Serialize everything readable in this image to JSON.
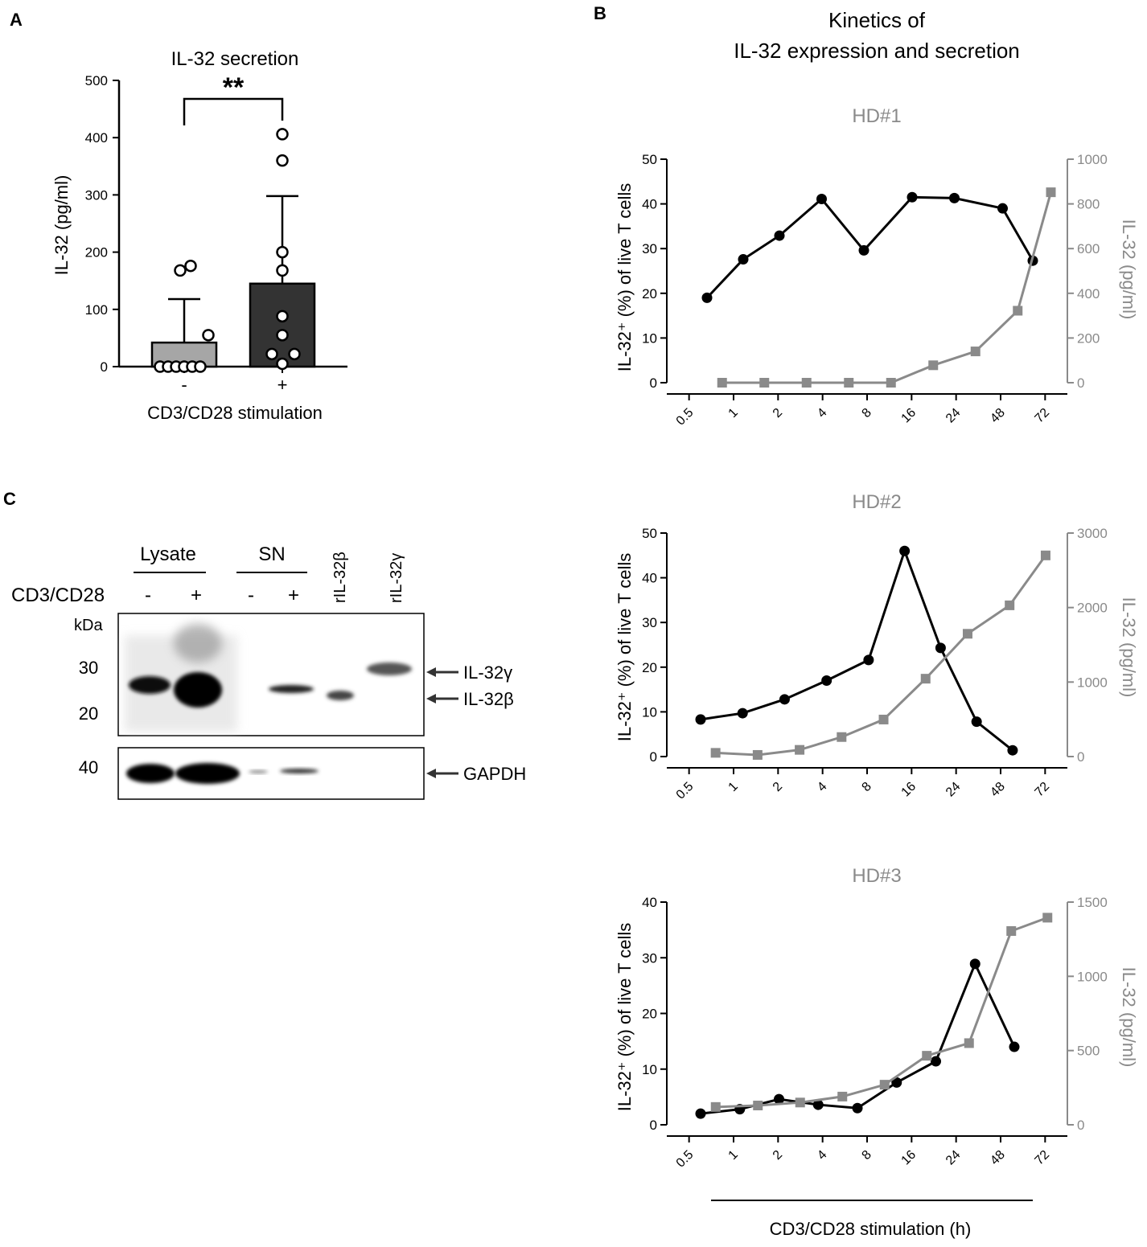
{
  "panels": {
    "a": "A",
    "b": "B",
    "c": "C"
  },
  "colors": {
    "black": "#000000",
    "gray": "#8a8a8a",
    "bar_unstim": "#a6a6a6",
    "bar_stim": "#333333"
  },
  "chart_data": [
    {
      "id": "panel-a",
      "type": "bar",
      "title": "IL-32 secretion",
      "ylabel": "IL-32 (pg/ml)",
      "xlabel": "CD3/CD28 stimulation",
      "categories": [
        "-",
        "+"
      ],
      "values": [
        42,
        145
      ],
      "sd": [
        76,
        153
      ],
      "ylim": [
        0,
        500
      ],
      "yticks": [
        0,
        100,
        200,
        300,
        400,
        500
      ],
      "points": [
        [
          0,
          0,
          0,
          0,
          0,
          0,
          55,
          168,
          176
        ],
        [
          5,
          22,
          22,
          55,
          88,
          168,
          200,
          360,
          406
        ]
      ],
      "significance": "**"
    },
    {
      "id": "hd1",
      "type": "line",
      "title": "HD#1",
      "x": [
        "0.5",
        "1",
        "2",
        "4",
        "8",
        "16",
        "24",
        "48",
        "72"
      ],
      "ylabel_left": "IL-32⁺ (%) of live T cells",
      "ylabel_right": "IL-32 (pg/ml)",
      "ylim_left": [
        0,
        50
      ],
      "ylim_right": [
        0,
        1000
      ],
      "yticks_left": [
        0,
        10,
        20,
        30,
        40,
        50
      ],
      "yticks_right": [
        0,
        200,
        400,
        600,
        800,
        1000
      ],
      "series": [
        {
          "name": "IL-32⁺ (%) of live T cells",
          "axis": "left",
          "marker": "circle",
          "x_pos": [
            0.0,
            0.6,
            1.2,
            1.9,
            2.6,
            3.4,
            4.1,
            4.9,
            5.4
          ],
          "values": [
            19,
            27.6,
            32.9,
            41.1,
            29.6,
            41.5,
            41.3,
            39,
            27.3
          ]
        },
        {
          "name": "IL-32 (pg/ml)",
          "axis": "right",
          "marker": "square",
          "x_pos": [
            0.25,
            0.95,
            1.65,
            2.35,
            3.05,
            3.75,
            4.45,
            5.15,
            5.7
          ],
          "values": [
            0,
            0,
            0,
            0,
            0,
            78,
            140,
            322,
            852
          ]
        }
      ]
    },
    {
      "id": "hd2",
      "type": "line",
      "title": "HD#2",
      "x": [
        "0.5",
        "1",
        "2",
        "4",
        "8",
        "16",
        "24",
        "48",
        "72"
      ],
      "ylabel_left": "IL-32⁺ (%) of live T cells",
      "ylabel_right": "IL-32 (pg/ml)",
      "ylim_left": [
        0,
        50
      ],
      "ylim_right": [
        0,
        3000
      ],
      "yticks_left": [
        0,
        10,
        20,
        30,
        40,
        50
      ],
      "yticks_right": [
        0,
        1000,
        2000,
        3000
      ],
      "series": [
        {
          "name": "IL-32⁺ (%) of live T cells",
          "axis": "left",
          "marker": "circle",
          "x_pos": [
            0.0,
            0.7,
            1.4,
            2.1,
            2.8,
            3.4,
            4.0,
            4.6,
            5.2
          ],
          "values": [
            8.3,
            9.7,
            12.8,
            17,
            21.6,
            46,
            24.3,
            7.8,
            1.4
          ]
        },
        {
          "name": "IL-32 (pg/ml)",
          "axis": "right",
          "marker": "square",
          "x_pos": [
            0.25,
            0.95,
            1.65,
            2.35,
            3.05,
            3.75,
            4.45,
            5.15,
            5.75
          ],
          "values": [
            50,
            22,
            90,
            262,
            497,
            1045,
            1648,
            2030,
            2700
          ]
        }
      ]
    },
    {
      "id": "hd3",
      "type": "line",
      "title": "HD#3",
      "x": [
        "0.5",
        "1",
        "2",
        "4",
        "8",
        "16",
        "24",
        "48",
        "72"
      ],
      "ylabel_left": "IL-32⁺ (%) of live T cells",
      "ylabel_right": "IL-32 (pg/ml)",
      "xlabel": "CD3/CD28 stimulation (h)",
      "ylim_left": [
        0,
        40
      ],
      "ylim_right": [
        0,
        1500
      ],
      "yticks_left": [
        0,
        10,
        20,
        30,
        40
      ],
      "yticks_right": [
        0,
        500,
        1000,
        1500
      ],
      "series": [
        {
          "name": "IL-32⁺ (%) of live T cells",
          "axis": "left",
          "marker": "circle",
          "x_pos": [
            0.0,
            0.65,
            1.3,
            1.95,
            2.6,
            3.25,
            3.9,
            4.55,
            5.2
          ],
          "values": [
            2,
            2.8,
            4.6,
            3.6,
            3,
            7.6,
            11.4,
            28.9,
            14
          ]
        },
        {
          "name": "IL-32 (pg/ml)",
          "axis": "right",
          "marker": "square",
          "x_pos": [
            0.25,
            0.95,
            1.65,
            2.35,
            3.05,
            3.75,
            4.45,
            5.15,
            5.75
          ],
          "values": [
            120,
            130,
            150,
            190,
            270,
            465,
            550,
            1305,
            1395
          ]
        }
      ]
    }
  ],
  "panel_b": {
    "title_line1": "Kinetics of",
    "title_line2": "IL-32 expression and secretion"
  },
  "panel_c": {
    "groups": [
      "Lysate",
      "SN"
    ],
    "treatment_label": "CD3/CD28",
    "signs": [
      "-",
      "+",
      "-",
      "+"
    ],
    "recombinant": [
      "rIL-32β",
      "rIL-32γ"
    ],
    "kda_label": "kDa",
    "markers_top": [
      "30",
      "20"
    ],
    "markers_bottom": [
      "40"
    ],
    "arrows": [
      "IL-32γ",
      "IL-32β",
      "GAPDH"
    ]
  }
}
